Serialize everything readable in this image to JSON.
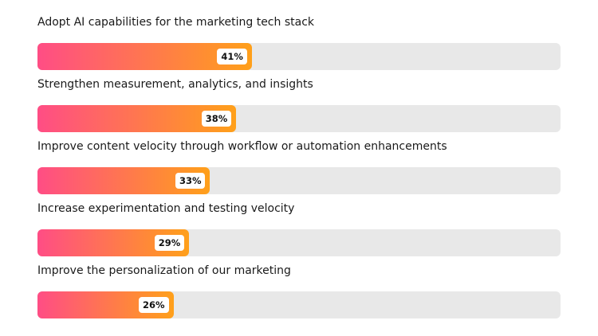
{
  "chart_data": {
    "type": "bar",
    "orientation": "horizontal",
    "categories": [
      "Adopt AI capabilities for the marketing tech stack",
      "Strengthen measurement, analytics, and insights",
      "Improve content velocity through workflow or automation enhancements",
      "Increase experimentation and testing velocity",
      "Improve the personalization of our marketing"
    ],
    "values": [
      41,
      38,
      33,
      29,
      26
    ],
    "data_labels": [
      "41%",
      "38%",
      "33%",
      "29%",
      "26%"
    ],
    "xlim": [
      0,
      100
    ],
    "unit": "%",
    "grid": false,
    "colors": {
      "gradient_start": "#ff4d85",
      "gradient_end": "#ffa01a",
      "track": "#e8e8e8"
    }
  }
}
